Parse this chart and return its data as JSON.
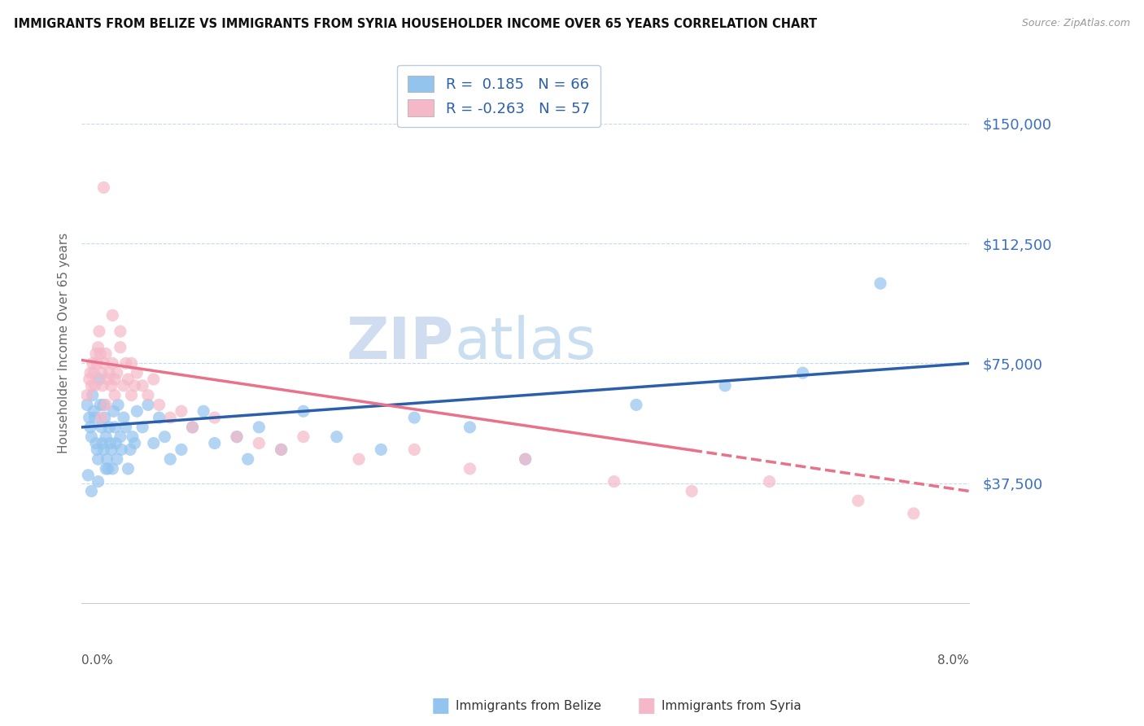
{
  "title": "IMMIGRANTS FROM BELIZE VS IMMIGRANTS FROM SYRIA HOUSEHOLDER INCOME OVER 65 YEARS CORRELATION CHART",
  "source": "Source: ZipAtlas.com",
  "ylabel": "Householder Income Over 65 years",
  "xlim": [
    0.0,
    8.0
  ],
  "ylim": [
    0,
    162500
  ],
  "yticks": [
    0,
    37500,
    75000,
    112500,
    150000
  ],
  "ytick_labels": [
    "",
    "$37,500",
    "$75,000",
    "$112,500",
    "$150,000"
  ],
  "belize_color": "#93C4EE",
  "syria_color": "#F5B8C8",
  "belize_line_color": "#2B5FAB",
  "syria_line_color": "#E8728A",
  "belize_R": 0.185,
  "belize_N": 66,
  "syria_R": -0.263,
  "syria_N": 57,
  "watermark_zip": "ZIP",
  "watermark_atlas": "atlas",
  "belize_x": [
    0.05,
    0.07,
    0.08,
    0.09,
    0.1,
    0.11,
    0.12,
    0.13,
    0.14,
    0.15,
    0.16,
    0.17,
    0.18,
    0.19,
    0.2,
    0.2,
    0.21,
    0.22,
    0.23,
    0.24,
    0.25,
    0.26,
    0.27,
    0.28,
    0.29,
    0.3,
    0.31,
    0.32,
    0.33,
    0.35,
    0.36,
    0.38,
    0.4,
    0.42,
    0.44,
    0.46,
    0.48,
    0.5,
    0.55,
    0.6,
    0.65,
    0.7,
    0.75,
    0.8,
    0.9,
    1.0,
    1.1,
    1.2,
    1.4,
    1.5,
    1.6,
    1.8,
    2.0,
    2.3,
    2.7,
    3.0,
    3.5,
    4.0,
    5.0,
    5.8,
    6.5,
    7.2,
    0.06,
    0.09,
    0.15,
    0.22
  ],
  "belize_y": [
    62000,
    58000,
    55000,
    52000,
    65000,
    60000,
    58000,
    50000,
    48000,
    45000,
    70000,
    62000,
    55000,
    50000,
    62000,
    48000,
    58000,
    52000,
    45000,
    42000,
    55000,
    50000,
    48000,
    42000,
    60000,
    55000,
    50000,
    45000,
    62000,
    52000,
    48000,
    58000,
    55000,
    42000,
    48000,
    52000,
    50000,
    60000,
    55000,
    62000,
    50000,
    58000,
    52000,
    45000,
    48000,
    55000,
    60000,
    50000,
    52000,
    45000,
    55000,
    48000,
    60000,
    52000,
    48000,
    58000,
    55000,
    45000,
    62000,
    68000,
    72000,
    100000,
    40000,
    35000,
    38000,
    42000
  ],
  "syria_x": [
    0.05,
    0.07,
    0.08,
    0.09,
    0.1,
    0.11,
    0.12,
    0.13,
    0.14,
    0.15,
    0.16,
    0.17,
    0.18,
    0.19,
    0.2,
    0.22,
    0.24,
    0.25,
    0.27,
    0.28,
    0.3,
    0.32,
    0.35,
    0.38,
    0.4,
    0.42,
    0.45,
    0.48,
    0.5,
    0.55,
    0.6,
    0.65,
    0.7,
    0.8,
    0.9,
    1.0,
    1.2,
    1.4,
    1.6,
    1.8,
    2.0,
    2.5,
    3.0,
    3.5,
    4.0,
    4.8,
    5.5,
    6.2,
    7.0,
    7.5,
    0.2,
    0.28,
    0.35,
    0.45,
    0.3,
    0.22,
    0.18
  ],
  "syria_y": [
    65000,
    70000,
    72000,
    68000,
    75000,
    72000,
    68000,
    78000,
    75000,
    80000,
    85000,
    78000,
    72000,
    68000,
    75000,
    78000,
    70000,
    72000,
    68000,
    75000,
    70000,
    72000,
    80000,
    68000,
    75000,
    70000,
    65000,
    68000,
    72000,
    68000,
    65000,
    70000,
    62000,
    58000,
    60000,
    55000,
    58000,
    52000,
    50000,
    48000,
    52000,
    45000,
    48000,
    42000,
    45000,
    38000,
    35000,
    38000,
    32000,
    28000,
    130000,
    90000,
    85000,
    75000,
    65000,
    62000,
    58000
  ]
}
